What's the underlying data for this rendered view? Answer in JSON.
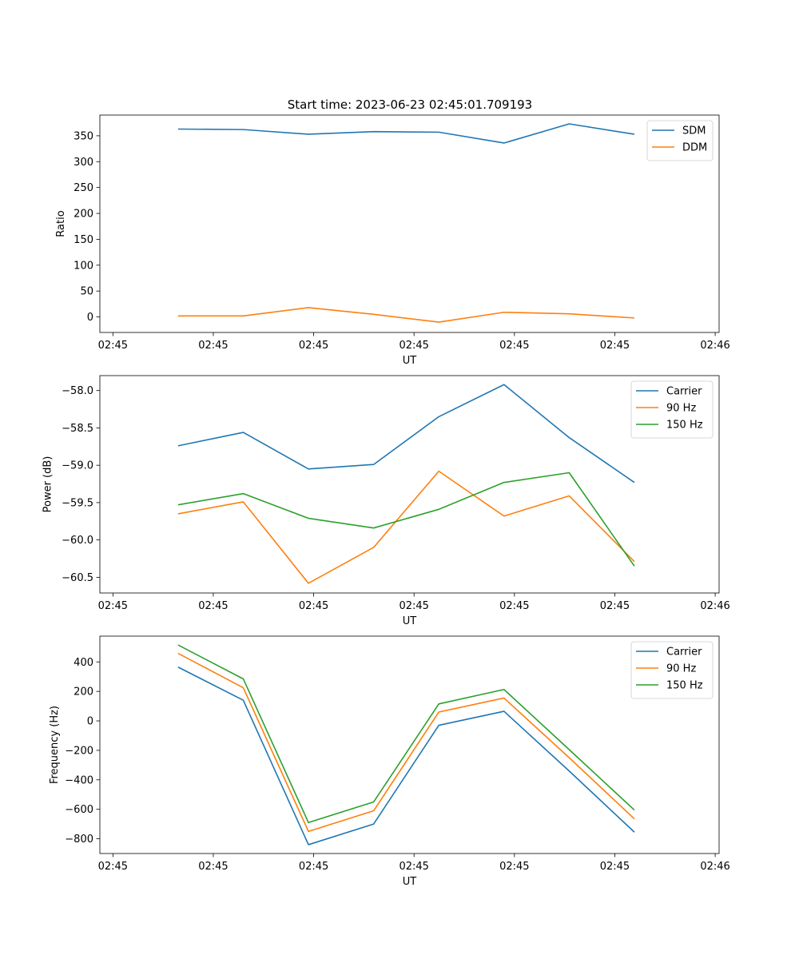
{
  "figure": {
    "title": "Start time: 2023-06-23 02:45:01.709193"
  },
  "colors": {
    "series1": "#1f77b4",
    "series2": "#ff7f0e",
    "series3": "#2ca02c"
  },
  "chart_data": [
    {
      "type": "line",
      "x": [
        1,
        2,
        3,
        4,
        5,
        6,
        7,
        8
      ],
      "x_tick_values": [
        0,
        1.54,
        3.08,
        4.62,
        6.16,
        7.7,
        9.24
      ],
      "x_tick_labels": [
        "02:45",
        "02:45",
        "02:45",
        "02:45",
        "02:45",
        "02:45",
        "02:46"
      ],
      "xlim": [
        -0.2,
        9.3
      ],
      "xlabel": "UT",
      "ylabel": "Ratio",
      "ylim": [
        -30,
        390
      ],
      "y_ticks": [
        0,
        50,
        100,
        150,
        200,
        250,
        300,
        350
      ],
      "y_tick_labels": [
        "0",
        "50",
        "100",
        "150",
        "200",
        "250",
        "300",
        "350"
      ],
      "grid": false,
      "legend": "top-right",
      "series": [
        {
          "name": "SDM",
          "color": "#1f77b4",
          "values": [
            363,
            362,
            353,
            358,
            357,
            336,
            373,
            353
          ]
        },
        {
          "name": "DDM",
          "color": "#ff7f0e",
          "values": [
            2,
            2,
            18,
            5,
            -10,
            9,
            6,
            -2
          ]
        }
      ]
    },
    {
      "type": "line",
      "x": [
        1,
        2,
        3,
        4,
        5,
        6,
        7,
        8
      ],
      "x_tick_values": [
        0,
        1.54,
        3.08,
        4.62,
        6.16,
        7.7,
        9.24
      ],
      "x_tick_labels": [
        "02:45",
        "02:45",
        "02:45",
        "02:45",
        "02:45",
        "02:45",
        "02:46"
      ],
      "xlim": [
        -0.2,
        9.3
      ],
      "xlabel": "UT",
      "ylabel": "Power (dB)",
      "ylim": [
        -60.71,
        -57.8
      ],
      "y_ticks": [
        -60.5,
        -60.0,
        -59.5,
        -59.0,
        -58.5,
        -58.0
      ],
      "y_tick_labels": [
        "−60.5",
        "−60.0",
        "−59.5",
        "−59.0",
        "−58.5",
        "−58.0"
      ],
      "grid": false,
      "legend": "top-right",
      "series": [
        {
          "name": "Carrier",
          "color": "#1f77b4",
          "values": [
            -58.74,
            -58.56,
            -59.05,
            -58.99,
            -58.35,
            -57.92,
            -58.63,
            -59.23
          ]
        },
        {
          "name": "90 Hz",
          "color": "#ff7f0e",
          "values": [
            -59.65,
            -59.49,
            -60.58,
            -60.1,
            -59.08,
            -59.68,
            -59.41,
            -60.29
          ]
        },
        {
          "name": "150 Hz",
          "color": "#2ca02c",
          "values": [
            -59.53,
            -59.38,
            -59.71,
            -59.84,
            -59.59,
            -59.23,
            -59.1,
            -60.35
          ]
        }
      ]
    },
    {
      "type": "line",
      "x": [
        1,
        2,
        3,
        4,
        5,
        6,
        7,
        8
      ],
      "x_tick_values": [
        0,
        1.54,
        3.08,
        4.62,
        6.16,
        7.7,
        9.24
      ],
      "x_tick_labels": [
        "02:45",
        "02:45",
        "02:45",
        "02:45",
        "02:45",
        "02:45",
        "02:46"
      ],
      "xlim": [
        -0.2,
        9.3
      ],
      "xlabel": "UT",
      "ylabel": "Frequency (Hz)",
      "ylim": [
        -900,
        575
      ],
      "y_ticks": [
        -800,
        -600,
        -400,
        -200,
        0,
        200,
        400
      ],
      "y_tick_labels": [
        "−800",
        "−600",
        "−400",
        "−200",
        "0",
        "200",
        "400"
      ],
      "grid": false,
      "legend": "top-right",
      "series": [
        {
          "name": "Carrier",
          "color": "#1f77b4",
          "values": [
            365,
            140,
            -840,
            -700,
            -30,
            65,
            -340,
            -755
          ]
        },
        {
          "name": "90 Hz",
          "color": "#ff7f0e",
          "values": [
            458,
            225,
            -750,
            -610,
            60,
            155,
            -250,
            -665
          ]
        },
        {
          "name": "150 Hz",
          "color": "#2ca02c",
          "values": [
            515,
            285,
            -690,
            -550,
            115,
            213,
            -195,
            -605
          ]
        }
      ]
    }
  ]
}
